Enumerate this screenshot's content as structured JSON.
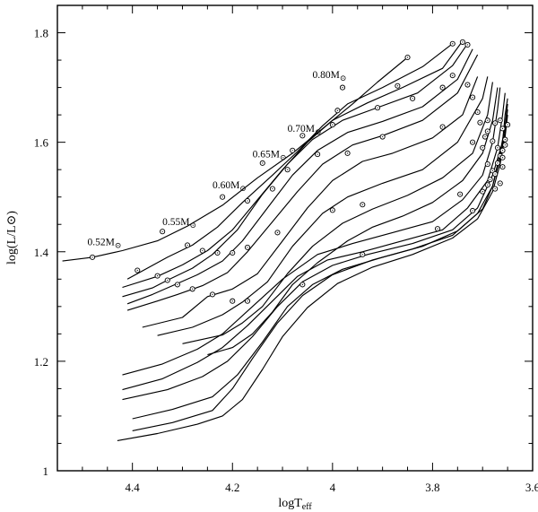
{
  "chart_data": {
    "type": "line",
    "xlabel": "logT",
    "xlabel_sub": "eff",
    "ylabel": "log(L/L⊙)",
    "xlim": [
      4.55,
      3.6
    ],
    "ylim": [
      1.0,
      1.85
    ],
    "xticks": [
      4.4,
      4.2,
      4.0,
      3.8,
      3.6
    ],
    "xtick_labels": [
      "4.4",
      "4.2",
      "4",
      "3.8",
      "3.6"
    ],
    "yticks": [
      1.0,
      1.2,
      1.4,
      1.6,
      1.8
    ],
    "ytick_labels": [
      "1",
      "1.2",
      "1.4",
      "1.6",
      "1.8"
    ],
    "grid": false,
    "series": [
      {
        "name": "0.52M⊙",
        "label": "0.52M⊙",
        "points": [
          [
            4.54,
            1.383
          ],
          [
            4.48,
            1.39
          ],
          [
            4.42,
            1.402
          ],
          [
            4.35,
            1.42
          ],
          [
            4.29,
            1.447
          ],
          [
            4.22,
            1.485
          ],
          [
            4.15,
            1.535
          ],
          [
            4.08,
            1.58
          ],
          [
            4.02,
            1.625
          ],
          [
            3.96,
            1.67
          ],
          [
            3.91,
            1.71
          ],
          [
            3.85,
            1.755
          ]
        ]
      },
      {
        "name": "0.55M⊙",
        "label": "0.55M⊙",
        "points": [
          [
            4.41,
            1.35
          ],
          [
            4.38,
            1.365
          ],
          [
            4.33,
            1.39
          ],
          [
            4.28,
            1.412
          ],
          [
            4.23,
            1.445
          ],
          [
            4.18,
            1.49
          ],
          [
            4.12,
            1.54
          ],
          [
            4.07,
            1.583
          ],
          [
            4.02,
            1.63
          ],
          [
            3.97,
            1.67
          ],
          [
            3.9,
            1.7
          ],
          [
            3.82,
            1.738
          ],
          [
            3.76,
            1.78
          ]
        ]
      },
      {
        "name": "0.60M⊙",
        "label": "0.60M⊙",
        "points": [
          [
            4.42,
            1.335
          ],
          [
            4.35,
            1.355
          ],
          [
            4.3,
            1.376
          ],
          [
            4.25,
            1.402
          ],
          [
            4.2,
            1.44
          ],
          [
            4.15,
            1.495
          ],
          [
            4.1,
            1.55
          ],
          [
            4.05,
            1.6
          ],
          [
            4.0,
            1.64
          ],
          [
            3.93,
            1.672
          ],
          [
            3.86,
            1.7
          ],
          [
            3.78,
            1.735
          ],
          [
            3.74,
            1.785
          ]
        ]
      },
      {
        "name": "0.65M⊙",
        "label": "0.65M⊙",
        "points": [
          [
            4.42,
            1.318
          ],
          [
            4.36,
            1.334
          ],
          [
            4.33,
            1.348
          ],
          [
            4.28,
            1.37
          ],
          [
            4.24,
            1.395
          ],
          [
            4.19,
            1.44
          ],
          [
            4.14,
            1.505
          ],
          [
            4.09,
            1.56
          ],
          [
            4.04,
            1.605
          ],
          [
            3.98,
            1.64
          ],
          [
            3.92,
            1.66
          ],
          [
            3.83,
            1.69
          ],
          [
            3.76,
            1.74
          ],
          [
            3.73,
            1.78
          ]
        ]
      },
      {
        "name": "0.70M⊙",
        "label": "0.70M⊙",
        "points": [
          [
            4.41,
            1.305
          ],
          [
            4.36,
            1.322
          ],
          [
            4.32,
            1.338
          ],
          [
            4.27,
            1.358
          ],
          [
            4.22,
            1.383
          ],
          [
            4.18,
            1.42
          ],
          [
            4.13,
            1.48
          ],
          [
            4.08,
            1.54
          ],
          [
            4.03,
            1.585
          ],
          [
            3.97,
            1.618
          ],
          [
            3.9,
            1.638
          ],
          [
            3.82,
            1.665
          ],
          [
            3.75,
            1.715
          ],
          [
            3.72,
            1.77
          ]
        ]
      },
      {
        "name": "0.80M⊙",
        "label": "0.80M⊙",
        "points": [
          [
            4.41,
            1.293
          ],
          [
            4.35,
            1.31
          ],
          [
            4.31,
            1.322
          ],
          [
            4.26,
            1.338
          ],
          [
            4.21,
            1.362
          ],
          [
            4.17,
            1.4
          ],
          [
            4.12,
            1.455
          ],
          [
            4.07,
            1.51
          ],
          [
            4.02,
            1.56
          ],
          [
            3.96,
            1.595
          ],
          [
            3.9,
            1.612
          ],
          [
            3.82,
            1.64
          ],
          [
            3.75,
            1.69
          ],
          [
            3.71,
            1.76
          ]
        ]
      },
      {
        "points": [
          [
            4.38,
            1.262
          ],
          [
            4.3,
            1.28
          ],
          [
            4.25,
            1.318
          ],
          [
            4.2,
            1.332
          ],
          [
            4.15,
            1.36
          ],
          [
            4.1,
            1.42
          ],
          [
            4.05,
            1.48
          ],
          [
            4.0,
            1.53
          ],
          [
            3.94,
            1.565
          ],
          [
            3.88,
            1.58
          ],
          [
            3.8,
            1.608
          ],
          [
            3.74,
            1.65
          ],
          [
            3.71,
            1.72
          ]
        ]
      },
      {
        "points": [
          [
            4.35,
            1.247
          ],
          [
            4.28,
            1.262
          ],
          [
            4.22,
            1.285
          ],
          [
            4.18,
            1.308
          ],
          [
            4.13,
            1.345
          ],
          [
            4.08,
            1.41
          ],
          [
            4.02,
            1.47
          ],
          [
            3.97,
            1.5
          ],
          [
            3.9,
            1.525
          ],
          [
            3.82,
            1.55
          ],
          [
            3.75,
            1.6
          ],
          [
            3.7,
            1.68
          ],
          [
            3.69,
            1.72
          ]
        ]
      },
      {
        "points": [
          [
            4.3,
            1.232
          ],
          [
            4.22,
            1.248
          ],
          [
            4.18,
            1.27
          ],
          [
            4.14,
            1.3
          ],
          [
            4.09,
            1.36
          ],
          [
            4.04,
            1.41
          ],
          [
            3.98,
            1.452
          ],
          [
            3.92,
            1.478
          ],
          [
            3.85,
            1.503
          ],
          [
            3.78,
            1.535
          ],
          [
            3.72,
            1.58
          ],
          [
            3.69,
            1.65
          ],
          [
            3.68,
            1.71
          ]
        ]
      },
      {
        "points": [
          [
            4.25,
            1.212
          ],
          [
            4.2,
            1.225
          ],
          [
            4.16,
            1.25
          ],
          [
            4.12,
            1.29
          ],
          [
            4.08,
            1.34
          ],
          [
            4.03,
            1.38
          ],
          [
            3.97,
            1.42
          ],
          [
            3.92,
            1.445
          ],
          [
            3.86,
            1.465
          ],
          [
            3.8,
            1.49
          ],
          [
            3.74,
            1.53
          ],
          [
            3.7,
            1.58
          ],
          [
            3.68,
            1.64
          ],
          [
            3.67,
            1.7
          ]
        ]
      },
      {
        "points": [
          [
            4.42,
            1.175
          ],
          [
            4.34,
            1.195
          ],
          [
            4.27,
            1.222
          ],
          [
            4.22,
            1.25
          ],
          [
            4.16,
            1.3
          ],
          [
            4.1,
            1.35
          ],
          [
            4.03,
            1.395
          ],
          [
            3.96,
            1.415
          ],
          [
            3.88,
            1.435
          ],
          [
            3.8,
            1.455
          ],
          [
            3.74,
            1.495
          ],
          [
            3.7,
            1.54
          ],
          [
            3.68,
            1.6
          ],
          [
            3.67,
            1.66
          ],
          [
            3.665,
            1.7
          ]
        ]
      },
      {
        "points": [
          [
            4.42,
            1.148
          ],
          [
            4.34,
            1.168
          ],
          [
            4.27,
            1.198
          ],
          [
            4.22,
            1.225
          ],
          [
            4.17,
            1.265
          ],
          [
            4.12,
            1.31
          ],
          [
            4.07,
            1.355
          ],
          [
            4.01,
            1.385
          ],
          [
            3.94,
            1.4
          ],
          [
            3.86,
            1.42
          ],
          [
            3.78,
            1.44
          ],
          [
            3.73,
            1.48
          ],
          [
            3.69,
            1.53
          ],
          [
            3.67,
            1.59
          ],
          [
            3.66,
            1.65
          ],
          [
            3.655,
            1.69
          ]
        ]
      },
      {
        "points": [
          [
            4.42,
            1.13
          ],
          [
            4.33,
            1.148
          ],
          [
            4.26,
            1.172
          ],
          [
            4.21,
            1.2
          ],
          [
            4.16,
            1.245
          ],
          [
            4.11,
            1.3
          ],
          [
            4.06,
            1.345
          ],
          [
            4.0,
            1.375
          ],
          [
            3.93,
            1.395
          ],
          [
            3.84,
            1.415
          ],
          [
            3.76,
            1.44
          ],
          [
            3.71,
            1.48
          ],
          [
            3.68,
            1.54
          ],
          [
            3.66,
            1.6
          ],
          [
            3.655,
            1.65
          ],
          [
            3.65,
            1.68
          ]
        ]
      },
      {
        "points": [
          [
            4.4,
            1.095
          ],
          [
            4.32,
            1.112
          ],
          [
            4.24,
            1.135
          ],
          [
            4.19,
            1.175
          ],
          [
            4.14,
            1.235
          ],
          [
            4.09,
            1.3
          ],
          [
            4.04,
            1.34
          ],
          [
            3.98,
            1.368
          ],
          [
            3.9,
            1.39
          ],
          [
            3.82,
            1.41
          ],
          [
            3.75,
            1.438
          ],
          [
            3.7,
            1.478
          ],
          [
            3.68,
            1.52
          ],
          [
            3.665,
            1.58
          ],
          [
            3.655,
            1.63
          ],
          [
            3.65,
            1.67
          ]
        ]
      },
      {
        "points": [
          [
            4.4,
            1.073
          ],
          [
            4.32,
            1.088
          ],
          [
            4.24,
            1.11
          ],
          [
            4.2,
            1.15
          ],
          [
            4.16,
            1.205
          ],
          [
            4.11,
            1.27
          ],
          [
            4.06,
            1.32
          ],
          [
            4.0,
            1.358
          ],
          [
            3.92,
            1.385
          ],
          [
            3.84,
            1.405
          ],
          [
            3.76,
            1.43
          ],
          [
            3.71,
            1.47
          ],
          [
            3.68,
            1.52
          ],
          [
            3.665,
            1.57
          ],
          [
            3.655,
            1.62
          ],
          [
            3.65,
            1.66
          ]
        ]
      },
      {
        "points": [
          [
            4.43,
            1.055
          ],
          [
            4.35,
            1.068
          ],
          [
            4.27,
            1.085
          ],
          [
            4.22,
            1.1
          ],
          [
            4.18,
            1.13
          ],
          [
            4.14,
            1.185
          ],
          [
            4.1,
            1.245
          ],
          [
            4.05,
            1.298
          ],
          [
            3.99,
            1.342
          ],
          [
            3.92,
            1.372
          ],
          [
            3.84,
            1.395
          ],
          [
            3.76,
            1.425
          ],
          [
            3.71,
            1.46
          ],
          [
            3.68,
            1.51
          ],
          [
            3.665,
            1.56
          ],
          [
            3.655,
            1.61
          ],
          [
            3.65,
            1.65
          ]
        ]
      }
    ],
    "markers": [
      [
        4.39,
        1.366
      ],
      [
        4.35,
        1.356
      ],
      [
        4.33,
        1.348
      ],
      [
        4.31,
        1.34
      ],
      [
        4.28,
        1.332
      ],
      [
        4.24,
        1.322
      ],
      [
        4.2,
        1.31
      ],
      [
        4.17,
        1.31
      ],
      [
        4.06,
        1.34
      ],
      [
        4.48,
        1.39
      ],
      [
        4.34,
        1.437
      ],
      [
        4.29,
        1.412
      ],
      [
        4.26,
        1.402
      ],
      [
        4.23,
        1.398
      ],
      [
        4.2,
        1.398
      ],
      [
        4.17,
        1.408
      ],
      [
        4.11,
        1.435
      ],
      [
        4.22,
        1.5
      ],
      [
        4.17,
        1.493
      ],
      [
        4.12,
        1.515
      ],
      [
        4.09,
        1.55
      ],
      [
        4.03,
        1.578
      ],
      [
        3.97,
        1.58
      ],
      [
        3.9,
        1.61
      ],
      [
        3.78,
        1.628
      ],
      [
        4.14,
        1.562
      ],
      [
        4.08,
        1.585
      ],
      [
        4.06,
        1.612
      ],
      [
        4.0,
        1.632
      ],
      [
        3.99,
        1.658
      ],
      [
        3.91,
        1.663
      ],
      [
        3.84,
        1.68
      ],
      [
        3.78,
        1.7
      ],
      [
        3.76,
        1.722
      ],
      [
        3.98,
        1.7
      ],
      [
        3.87,
        1.703
      ],
      [
        3.73,
        1.705
      ],
      [
        3.72,
        1.682
      ],
      [
        3.71,
        1.655
      ],
      [
        3.69,
        1.64
      ],
      [
        3.85,
        1.755
      ],
      [
        3.76,
        1.78
      ],
      [
        3.74,
        1.783
      ],
      [
        3.73,
        1.778
      ],
      [
        3.72,
        1.6
      ],
      [
        3.7,
        1.59
      ],
      [
        3.69,
        1.62
      ],
      [
        3.68,
        1.602
      ],
      [
        3.67,
        1.59
      ],
      [
        3.66,
        1.585
      ],
      [
        3.665,
        1.575
      ],
      [
        3.69,
        1.56
      ],
      [
        3.68,
        1.548
      ],
      [
        3.67,
        1.562
      ],
      [
        3.66,
        1.572
      ],
      [
        3.655,
        1.605
      ],
      [
        3.69,
        1.522
      ],
      [
        3.685,
        1.532
      ],
      [
        3.675,
        1.542
      ],
      [
        3.66,
        1.555
      ],
      [
        3.655,
        1.595
      ],
      [
        3.65,
        1.632
      ],
      [
        3.7,
        1.51
      ],
      [
        3.675,
        1.515
      ],
      [
        3.665,
        1.525
      ],
      [
        3.745,
        1.505
      ],
      [
        3.72,
        1.475
      ],
      [
        3.79,
        1.442
      ],
      [
        3.94,
        1.486
      ],
      [
        4.0,
        1.476
      ],
      [
        3.94,
        1.395
      ],
      [
        3.705,
        1.636
      ],
      [
        3.695,
        1.61
      ],
      [
        3.66,
        1.625
      ],
      [
        3.665,
        1.64
      ],
      [
        3.675,
        1.635
      ]
    ],
    "mass_labels": [
      {
        "text": "0.52M",
        "sym": "⊙",
        "x": 4.49,
        "y": 1.412
      },
      {
        "text": "0.55M",
        "sym": "⊙",
        "x": 4.34,
        "y": 1.449
      },
      {
        "text": "0.60M",
        "sym": "⊙",
        "x": 4.24,
        "y": 1.516
      },
      {
        "text": "0.65M",
        "sym": "⊙",
        "x": 4.16,
        "y": 1.572
      },
      {
        "text": "0.70M",
        "sym": "⊙",
        "x": 4.09,
        "y": 1.619
      },
      {
        "text": "0.80M",
        "sym": "⊙",
        "x": 4.04,
        "y": 1.717
      }
    ]
  }
}
